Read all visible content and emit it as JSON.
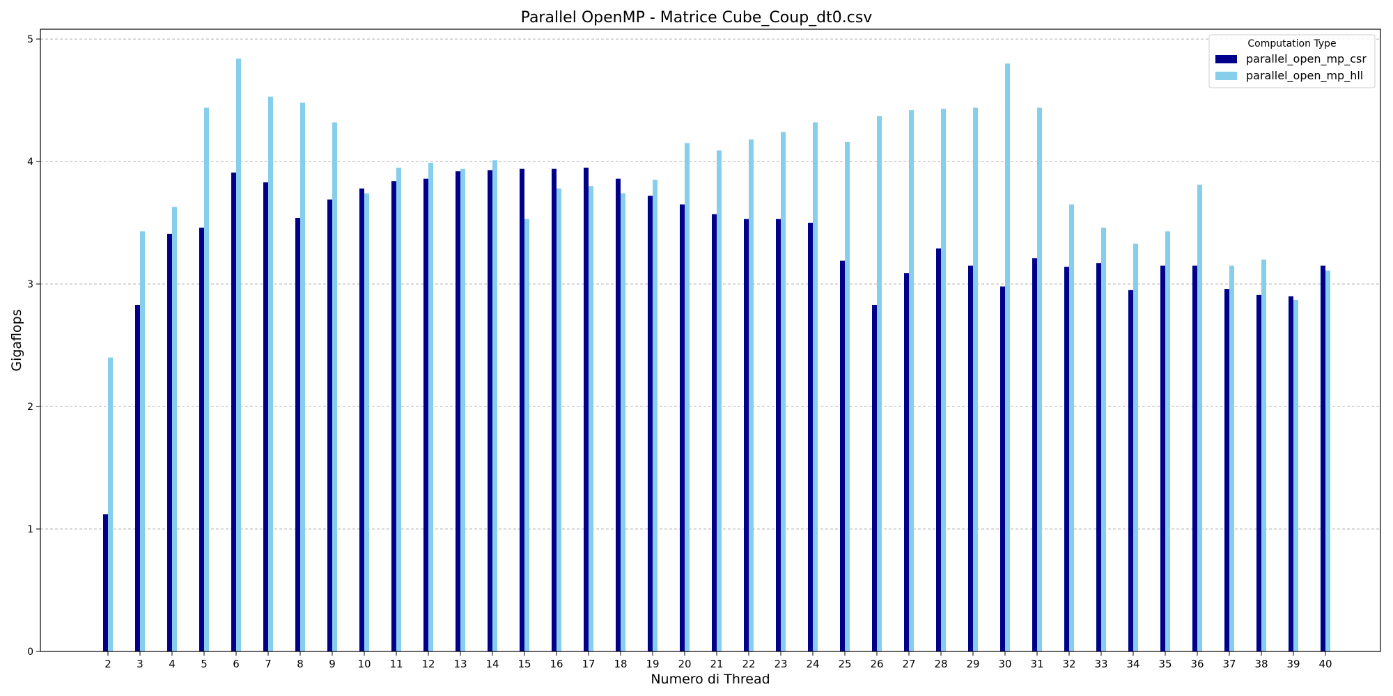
{
  "chart_data": {
    "type": "bar",
    "title": "Parallel OpenMP - Matrice Cube_Coup_dt0.csv",
    "xlabel": "Numero di Thread",
    "ylabel": "Gigaflops",
    "ylim": [
      0,
      5.08
    ],
    "yticks": [
      0,
      1,
      2,
      3,
      4,
      5
    ],
    "grid": "horizontal dashed",
    "legend": {
      "title": "Computation Type",
      "placement": "top-right"
    },
    "categories": [
      "2",
      "3",
      "4",
      "5",
      "6",
      "7",
      "8",
      "9",
      "10",
      "11",
      "12",
      "13",
      "14",
      "15",
      "16",
      "17",
      "18",
      "19",
      "20",
      "21",
      "22",
      "23",
      "24",
      "25",
      "26",
      "27",
      "28",
      "29",
      "30",
      "31",
      "32",
      "33",
      "34",
      "35",
      "36",
      "37",
      "38",
      "39",
      "40"
    ],
    "series": [
      {
        "name": "parallel_open_mp_csr",
        "color": "#00008b",
        "values": [
          1.12,
          2.83,
          3.41,
          3.46,
          3.91,
          3.83,
          3.54,
          3.69,
          3.78,
          3.84,
          3.86,
          3.92,
          3.93,
          3.94,
          3.94,
          3.95,
          3.86,
          3.72,
          3.65,
          3.57,
          3.53,
          3.53,
          3.5,
          3.19,
          2.83,
          3.09,
          3.29,
          3.15,
          2.98,
          3.21,
          3.14,
          3.17,
          2.95,
          3.15,
          3.15,
          2.96,
          2.91,
          2.9,
          3.15
        ]
      },
      {
        "name": "parallel_open_mp_hll",
        "color": "#87ceeb",
        "values": [
          2.4,
          3.43,
          3.63,
          4.44,
          4.84,
          4.53,
          4.48,
          4.32,
          3.74,
          3.95,
          3.99,
          3.94,
          4.01,
          3.53,
          3.78,
          3.8,
          3.74,
          3.85,
          4.15,
          4.09,
          4.18,
          4.24,
          4.32,
          4.16,
          4.37,
          4.42,
          4.43,
          4.44,
          4.8,
          4.44,
          3.65,
          3.46,
          3.33,
          3.43,
          3.81,
          3.15,
          3.2,
          2.87,
          3.11
        ]
      }
    ]
  }
}
